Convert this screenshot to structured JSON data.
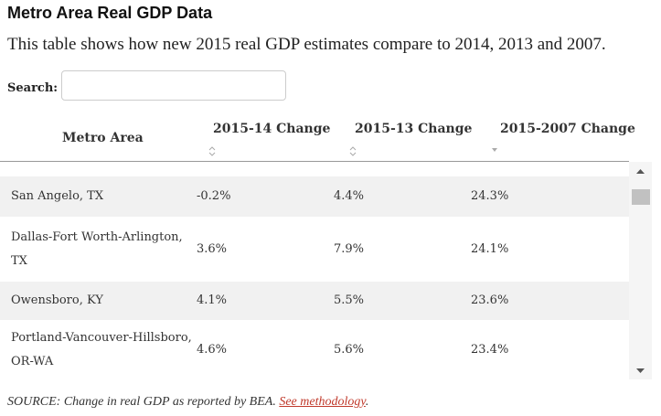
{
  "header": {
    "title": "Metro Area Real GDP Data",
    "subtitle": "This table shows how new 2015 real GDP estimates compare to 2014, 2013 and 2007."
  },
  "search": {
    "label": "Search:"
  },
  "table": {
    "columns": [
      "Metro Area",
      "2015-14 Change",
      "2015-13 Change",
      "2015-2007 Change"
    ],
    "rows": [
      [
        "San Angelo, TX",
        "-0.2%",
        "4.4%",
        "24.3%"
      ],
      [
        "Dallas-Fort Worth-Arlington, TX",
        "3.6%",
        "7.9%",
        "24.1%"
      ],
      [
        "Owensboro, KY",
        "4.1%",
        "5.5%",
        "23.6%"
      ],
      [
        "Portland-Vancouver-Hillsboro, OR-WA",
        "4.6%",
        "5.6%",
        "23.4%"
      ]
    ]
  },
  "source": {
    "text": "SOURCE: Change in real GDP as reported by BEA.",
    "link": "See methodology"
  }
}
